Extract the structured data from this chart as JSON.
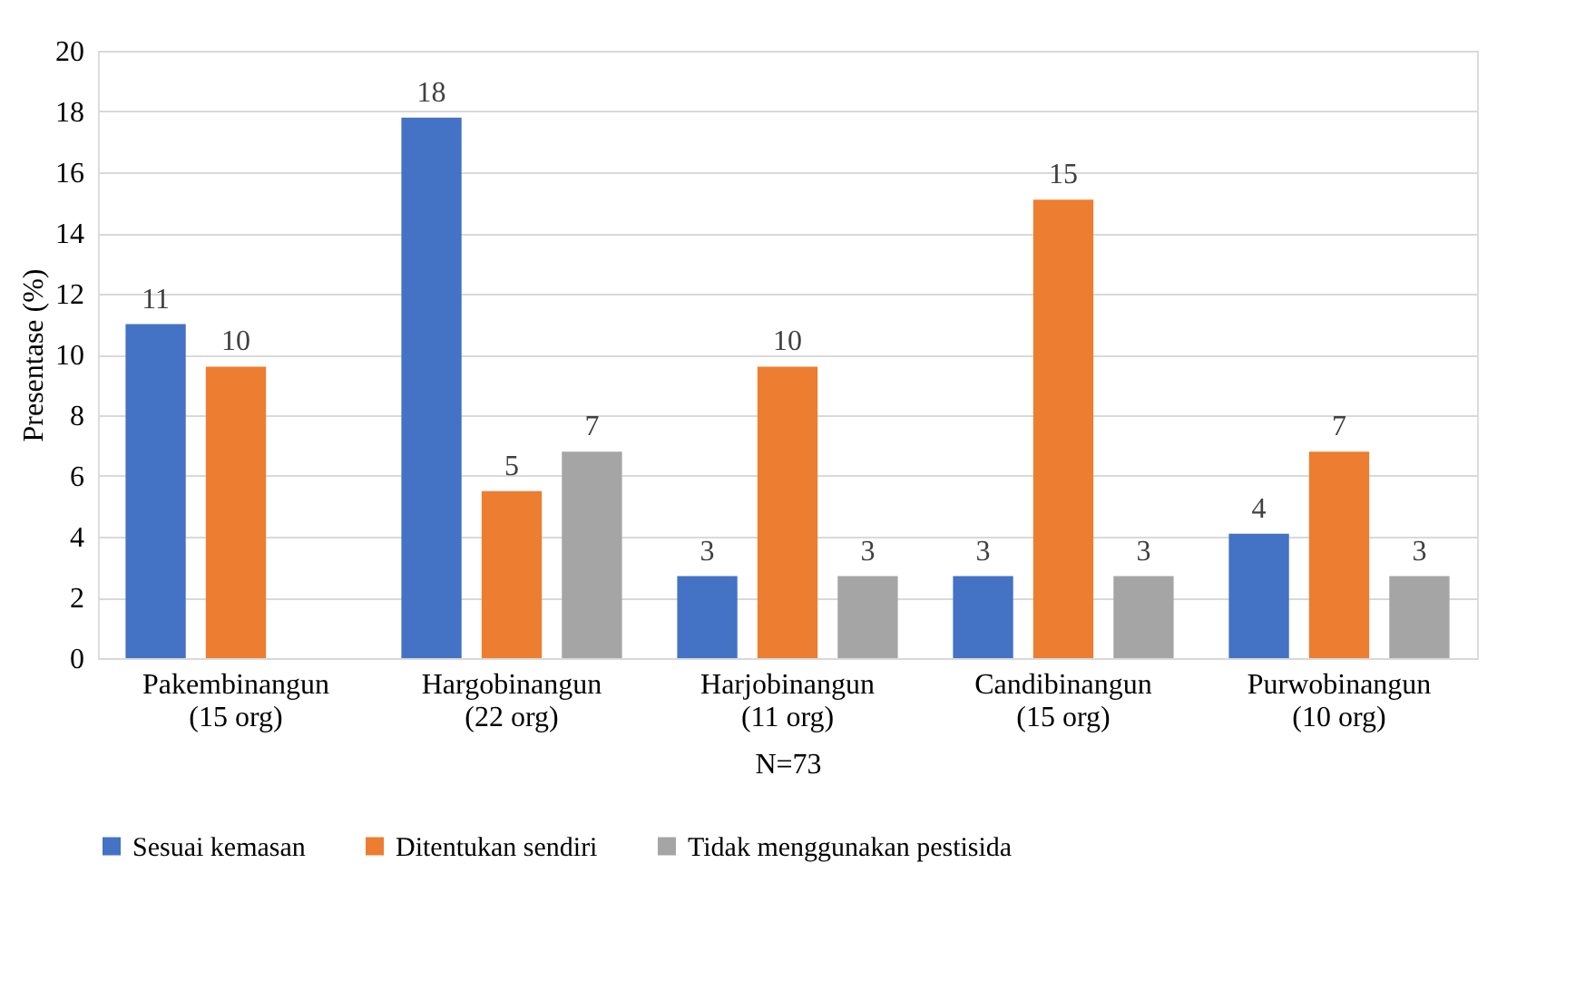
{
  "chart_data": {
    "type": "bar",
    "categories": [
      "Pakembinangun\n(15 org)",
      "Hargobinangun\n(22 org)",
      "Harjobinangun\n(11 org)",
      "Candibinangun\n(15 org)",
      "Purwobinangun\n(10 org)"
    ],
    "series": [
      {
        "name": "Sesuai kemasan",
        "color": "#4472c4",
        "values": [
          11.0,
          17.8,
          2.7,
          2.7,
          4.1
        ],
        "value_labels": [
          "11",
          "18",
          "3",
          "3",
          "4"
        ]
      },
      {
        "name": "Ditentukan sendiri",
        "color": "#ed7d31",
        "values": [
          9.6,
          5.5,
          9.6,
          15.1,
          6.8
        ],
        "value_labels": [
          "10",
          "5",
          "10",
          "15",
          "7"
        ]
      },
      {
        "name": "Tidak menggunakan pestisida",
        "color": "#a5a5a5",
        "values": [
          null,
          6.8,
          2.7,
          2.7,
          2.7
        ],
        "value_labels": [
          null,
          "7",
          "3",
          "3",
          "3"
        ]
      }
    ],
    "xlabel": "N=73",
    "ylabel": "Presentase (%)",
    "ylim": [
      0,
      20
    ],
    "yticks": [
      0,
      2,
      4,
      6,
      8,
      10,
      12,
      14,
      16,
      18,
      20
    ],
    "grid": "y",
    "legend": "bottom"
  }
}
